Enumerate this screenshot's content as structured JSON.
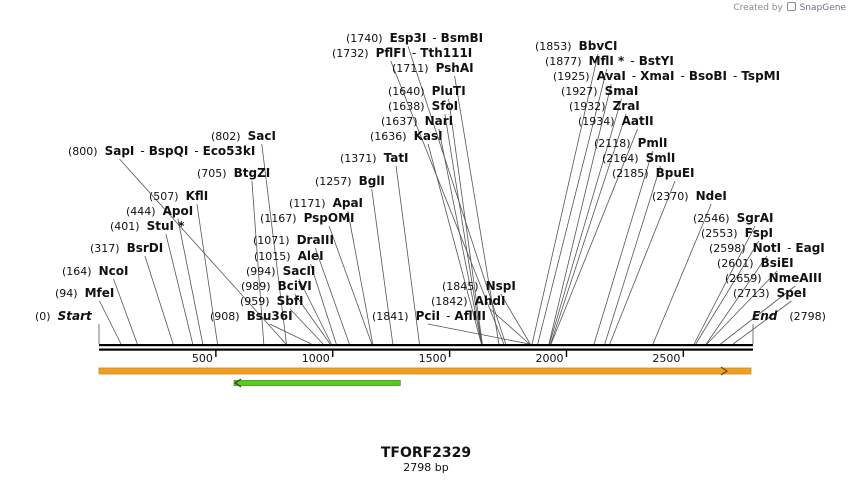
{
  "watermark": {
    "prefix": "Created by",
    "brand": "SnapGene"
  },
  "sequence": {
    "name": "TFORF2329",
    "length_label": "2798 bp",
    "length": 2798
  },
  "ruler": {
    "ticks": [
      "500",
      "1000",
      "1500",
      "2000",
      "2500"
    ],
    "tick_values": [
      500,
      1000,
      1500,
      2000,
      2500
    ]
  },
  "colors": {
    "line": "#000000",
    "leader": "#555555",
    "orange": "#f0a020",
    "orange_border": "#c98b2e",
    "green": "#55cc22",
    "green_border": "#3d9a18"
  },
  "features": [
    {
      "name": "orange-feature",
      "start": 0,
      "end": 2798,
      "direction": "forward"
    },
    {
      "name": "green-feature",
      "start": 578,
      "end": 1289,
      "direction": "reverse"
    }
  ],
  "sites": [
    {
      "pos": 0,
      "pos_label": "(0)",
      "names": [
        "Start"
      ],
      "italic": true
    },
    {
      "pos": 94,
      "pos_label": "(94)",
      "names": [
        "MfeI"
      ]
    },
    {
      "pos": 164,
      "pos_label": "(164)",
      "names": [
        "NcoI"
      ]
    },
    {
      "pos": 317,
      "pos_label": "(317)",
      "names": [
        "BsrDI"
      ]
    },
    {
      "pos": 401,
      "pos_label": "(401)",
      "names": [
        "StuI *"
      ]
    },
    {
      "pos": 444,
      "pos_label": "(444)",
      "names": [
        "ApoI"
      ]
    },
    {
      "pos": 507,
      "pos_label": "(507)",
      "names": [
        "KflI"
      ]
    },
    {
      "pos": 705,
      "pos_label": "(705)",
      "names": [
        "BtgZI"
      ]
    },
    {
      "pos": 800,
      "pos_label": "(800)",
      "names": [
        "SapI",
        "BspQI",
        "Eco53kI"
      ]
    },
    {
      "pos": 802,
      "pos_label": "(802)",
      "names": [
        "SacI"
      ]
    },
    {
      "pos": 908,
      "pos_label": "(908)",
      "names": [
        "Bsu36I"
      ]
    },
    {
      "pos": 959,
      "pos_label": "(959)",
      "names": [
        "SbfI"
      ]
    },
    {
      "pos": 989,
      "pos_label": "(989)",
      "names": [
        "BciVI"
      ]
    },
    {
      "pos": 994,
      "pos_label": "(994)",
      "names": [
        "SacII"
      ]
    },
    {
      "pos": 1015,
      "pos_label": "(1015)",
      "names": [
        "AleI"
      ]
    },
    {
      "pos": 1071,
      "pos_label": "(1071)",
      "names": [
        "DraIII"
      ]
    },
    {
      "pos": 1167,
      "pos_label": "(1167)",
      "names": [
        "PspOMI"
      ]
    },
    {
      "pos": 1171,
      "pos_label": "(1171)",
      "names": [
        "ApaI"
      ]
    },
    {
      "pos": 1257,
      "pos_label": "(1257)",
      "names": [
        "BglI"
      ]
    },
    {
      "pos": 1371,
      "pos_label": "(1371)",
      "names": [
        "TatI"
      ]
    },
    {
      "pos": 1841,
      "pos_label": "(1841)",
      "names": [
        "PciI",
        "AflIII"
      ]
    },
    {
      "pos": 1842,
      "pos_label": "(1842)",
      "names": [
        "AhdI"
      ]
    },
    {
      "pos": 1845,
      "pos_label": "(1845)",
      "names": [
        "NspI"
      ]
    },
    {
      "pos": 1636,
      "pos_label": "(1636)",
      "names": [
        "KasI"
      ]
    },
    {
      "pos": 1637,
      "pos_label": "(1637)",
      "names": [
        "NarI"
      ]
    },
    {
      "pos": 1638,
      "pos_label": "(1638)",
      "names": [
        "SfoI"
      ]
    },
    {
      "pos": 1640,
      "pos_label": "(1640)",
      "names": [
        "PluTI"
      ]
    },
    {
      "pos": 1711,
      "pos_label": "(1711)",
      "names": [
        "PshAI"
      ]
    },
    {
      "pos": 1732,
      "pos_label": "(1732)",
      "names": [
        "PflFI",
        "Tth111I"
      ]
    },
    {
      "pos": 1740,
      "pos_label": "(1740)",
      "names": [
        "Esp3I",
        "BsmBI"
      ]
    },
    {
      "pos": 1853,
      "pos_label": "(1853)",
      "names": [
        "BbvCI"
      ]
    },
    {
      "pos": 1877,
      "pos_label": "(1877)",
      "names": [
        "MflI *",
        "BstYI"
      ]
    },
    {
      "pos": 1925,
      "pos_label": "(1925)",
      "names": [
        "AvaI",
        "XmaI",
        "BsoBI",
        "TspMI"
      ]
    },
    {
      "pos": 1927,
      "pos_label": "(1927)",
      "names": [
        "SmaI"
      ]
    },
    {
      "pos": 1932,
      "pos_label": "(1932)",
      "names": [
        "ZraI"
      ]
    },
    {
      "pos": 1934,
      "pos_label": "(1934)",
      "names": [
        "AatII"
      ]
    },
    {
      "pos": 2118,
      "pos_label": "(2118)",
      "names": [
        "PmlI"
      ]
    },
    {
      "pos": 2164,
      "pos_label": "(2164)",
      "names": [
        "SmlI"
      ]
    },
    {
      "pos": 2185,
      "pos_label": "(2185)",
      "names": [
        "BpuEI"
      ]
    },
    {
      "pos": 2370,
      "pos_label": "(2370)",
      "names": [
        "NdeI"
      ]
    },
    {
      "pos": 2546,
      "pos_label": "(2546)",
      "names": [
        "SgrAI"
      ]
    },
    {
      "pos": 2553,
      "pos_label": "(2553)",
      "names": [
        "FspI"
      ]
    },
    {
      "pos": 2598,
      "pos_label": "(2598)",
      "names": [
        "NotI",
        "EagI"
      ]
    },
    {
      "pos": 2601,
      "pos_label": "(2601)",
      "names": [
        "BsiEI"
      ]
    },
    {
      "pos": 2659,
      "pos_label": "(2659)",
      "names": [
        "NmeAIII"
      ]
    },
    {
      "pos": 2713,
      "pos_label": "(2713)",
      "names": [
        "SpeI"
      ]
    },
    {
      "pos": 2798,
      "pos_label": "(2798)",
      "names": [
        "End"
      ],
      "italic": true
    }
  ]
}
